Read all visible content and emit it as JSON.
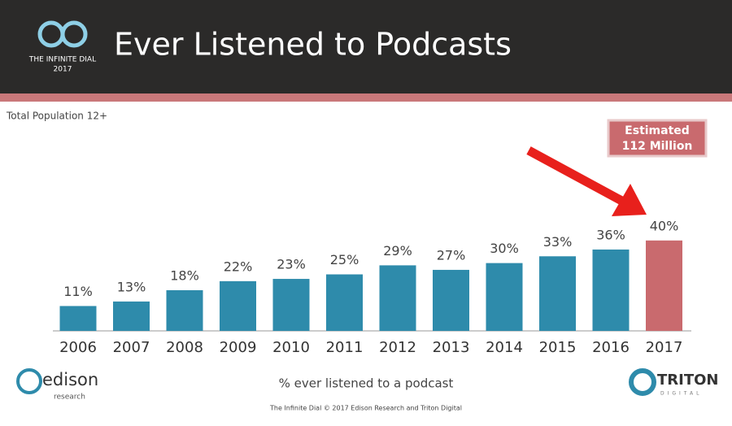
{
  "header": {
    "logo_text": "THE INFINITE DIAL",
    "logo_year": "2017",
    "title": "Ever Listened to Podcasts"
  },
  "chart_data": {
    "type": "bar",
    "subtitle": "Total Population 12+",
    "categories": [
      "2006",
      "2007",
      "2008",
      "2009",
      "2010",
      "2011",
      "2012",
      "2013",
      "2014",
      "2015",
      "2016",
      "2017"
    ],
    "values": [
      11,
      13,
      18,
      22,
      23,
      25,
      29,
      27,
      30,
      33,
      36,
      40
    ],
    "value_labels": [
      "11%",
      "13%",
      "18%",
      "22%",
      "23%",
      "25%",
      "29%",
      "27%",
      "30%",
      "33%",
      "36%",
      "40%"
    ],
    "colors": [
      "#2e8bab",
      "#2e8bab",
      "#2e8bab",
      "#2e8bab",
      "#2e8bab",
      "#2e8bab",
      "#2e8bab",
      "#2e8bab",
      "#2e8bab",
      "#2e8bab",
      "#2e8bab",
      "#c96a6e"
    ],
    "x_label": "% ever listened to a podcast",
    "annotation": [
      "Estimated",
      "112 Million"
    ]
  },
  "footer": {
    "credit": "The Infinite Dial  © 2017 Edison Research and Triton Digital",
    "edison": "edison",
    "edison_sub": "research",
    "triton": "TRITON",
    "triton_sub": "DIGITAL"
  }
}
